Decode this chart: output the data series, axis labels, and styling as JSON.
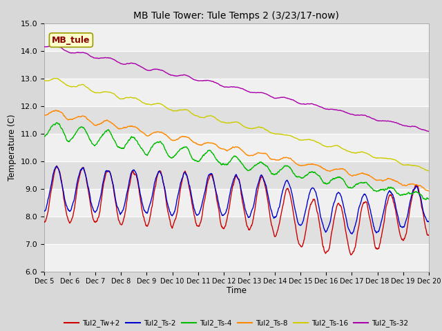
{
  "title": "MB Tule Tower: Tule Temps 2 (3/23/17-now)",
  "xlabel": "Time",
  "ylabel": "Temperature (C)",
  "xlim": [
    0,
    15
  ],
  "ylim": [
    6.0,
    15.0
  ],
  "yticks": [
    6.0,
    7.0,
    8.0,
    9.0,
    10.0,
    11.0,
    12.0,
    13.0,
    14.0,
    15.0
  ],
  "xtick_labels": [
    "Dec 5",
    "Dec 6",
    "Dec 7",
    "Dec 8",
    "Dec 9",
    "Dec 10",
    "Dec 11",
    "Dec 12",
    "Dec 13",
    "Dec 14",
    "Dec 15",
    "Dec 16",
    "Dec 17",
    "Dec 18",
    "Dec 19",
    "Dec 20"
  ],
  "series": {
    "Tul2_Tw+2": {
      "color": "#cc0000",
      "lw": 1.0
    },
    "Tul2_Ts-2": {
      "color": "#0000cc",
      "lw": 1.0
    },
    "Tul2_Ts-4": {
      "color": "#00bb00",
      "lw": 1.0
    },
    "Tul2_Ts-8": {
      "color": "#ff8800",
      "lw": 1.0
    },
    "Tul2_Ts-16": {
      "color": "#cccc00",
      "lw": 1.0
    },
    "Tul2_Ts-32": {
      "color": "#aa00aa",
      "lw": 1.0
    }
  },
  "watermark": "MB_tule",
  "watermark_bg": "#ffffcc",
  "watermark_fg": "#880000",
  "fig_bg": "#d8d8d8",
  "band_colors": [
    "#f0f0f0",
    "#e0e0e0"
  ]
}
